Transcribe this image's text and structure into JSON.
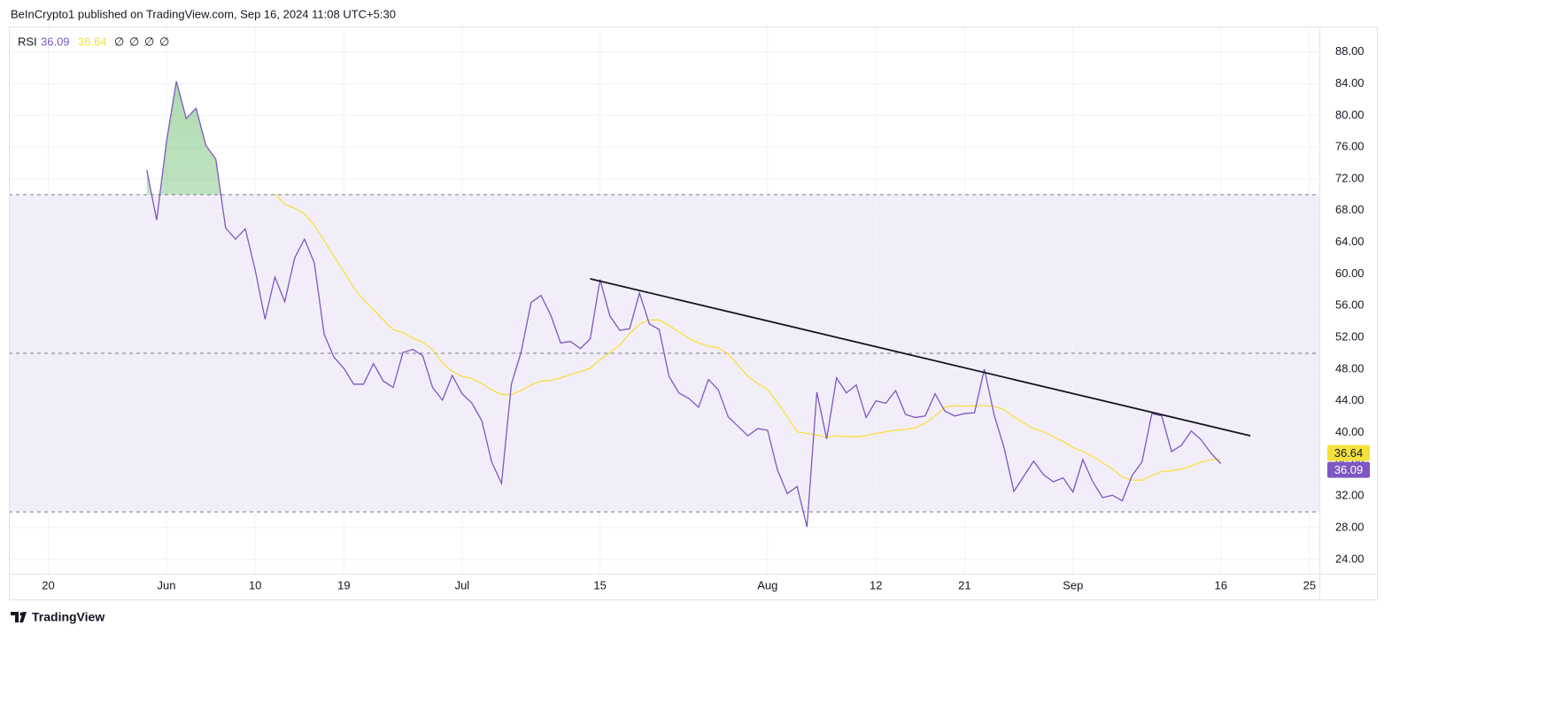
{
  "header": "BeInCrypto1 published on TradingView.com, Sep 16, 2024 11:08 UTC+5:30",
  "footer": "TradingView",
  "chart_data": {
    "type": "line",
    "legend_extras": [
      "∅",
      "∅",
      "∅",
      "∅"
    ],
    "x": [
      "May 30",
      "May 31",
      "Jun 1",
      "Jun 2",
      "Jun 3",
      "Jun 4",
      "Jun 5",
      "Jun 6",
      "Jun 7",
      "Jun 8",
      "Jun 9",
      "Jun 10",
      "Jun 11",
      "Jun 12",
      "Jun 13",
      "Jun 14",
      "Jun 15",
      "Jun 16",
      "Jun 17",
      "Jun 18",
      "Jun 19",
      "Jun 20",
      "Jun 21",
      "Jun 22",
      "Jun 23",
      "Jun 24",
      "Jun 25",
      "Jun 26",
      "Jun 27",
      "Jun 28",
      "Jun 29",
      "Jun 30",
      "Jul 1",
      "Jul 2",
      "Jul 3",
      "Jul 4",
      "Jul 5",
      "Jul 6",
      "Jul 7",
      "Jul 8",
      "Jul 9",
      "Jul 10",
      "Jul 11",
      "Jul 12",
      "Jul 13",
      "Jul 14",
      "Jul 15",
      "Jul 16",
      "Jul 17",
      "Jul 18",
      "Jul 19",
      "Jul 20",
      "Jul 21",
      "Jul 22",
      "Jul 23",
      "Jul 24",
      "Jul 25",
      "Jul 26",
      "Jul 27",
      "Jul 28",
      "Jul 29",
      "Jul 30",
      "Jul 31",
      "Aug 1",
      "Aug 2",
      "Aug 3",
      "Aug 4",
      "Aug 5",
      "Aug 6",
      "Aug 7",
      "Aug 8",
      "Aug 9",
      "Aug 10",
      "Aug 11",
      "Aug 12",
      "Aug 13",
      "Aug 14",
      "Aug 15",
      "Aug 16",
      "Aug 17",
      "Aug 18",
      "Aug 19",
      "Aug 20",
      "Aug 21",
      "Aug 22",
      "Aug 23",
      "Aug 24",
      "Aug 25",
      "Aug 26",
      "Aug 27",
      "Aug 28",
      "Aug 29",
      "Aug 30",
      "Aug 31",
      "Sep 1",
      "Sep 2",
      "Sep 3",
      "Sep 4",
      "Sep 5",
      "Sep 6",
      "Sep 7",
      "Sep 8",
      "Sep 9",
      "Sep 10",
      "Sep 11",
      "Sep 12",
      "Sep 13",
      "Sep 14",
      "Sep 15",
      "Sep 16"
    ],
    "series": [
      {
        "name": "RSI",
        "color": "#7e57c2",
        "values": [
          73.1,
          66.8,
          76.7,
          84.3,
          79.6,
          80.9,
          76.2,
          74.5,
          65.8,
          64.4,
          65.7,
          60.5,
          54.3,
          59.6,
          56.5,
          62.0,
          64.4,
          61.4,
          52.4,
          49.5,
          48.1,
          46.1,
          46.1,
          48.7,
          46.5,
          45.7,
          50.1,
          50.5,
          49.7,
          45.7,
          44.1,
          47.2,
          44.9,
          43.7,
          41.5,
          36.3,
          33.6,
          46.1,
          50.2,
          56.4,
          57.3,
          54.8,
          51.3,
          51.5,
          50.6,
          51.8,
          59.3,
          54.7,
          52.9,
          53.1,
          57.6,
          53.7,
          53.0,
          47.1,
          45.0,
          44.3,
          43.2,
          46.7,
          45.4,
          42.0,
          40.8,
          39.6,
          40.5,
          40.3,
          35.3,
          32.3,
          33.2,
          28.1,
          45.1,
          39.2,
          46.9,
          45.0,
          46.0,
          41.9,
          44.0,
          43.7,
          45.3,
          42.3,
          41.9,
          42.1,
          44.9,
          42.7,
          42.1,
          42.4,
          42.5,
          48.0,
          42.2,
          38.1,
          32.6,
          34.5,
          36.4,
          34.7,
          33.8,
          34.3,
          32.5,
          36.6,
          33.8,
          31.8,
          32.1,
          31.4,
          34.6,
          36.3,
          42.4,
          42.1,
          37.6,
          38.4,
          40.2,
          39.1,
          37.4,
          36.09
        ]
      },
      {
        "color": "#f5e13e",
        "values": [
          null,
          null,
          null,
          null,
          null,
          null,
          null,
          null,
          null,
          null,
          null,
          null,
          null,
          70.1,
          68.8,
          68.3,
          67.6,
          66.1,
          64.2,
          62.2,
          60.3,
          58.3,
          56.7,
          55.5,
          54.2,
          53.0,
          52.6,
          51.9,
          51.4,
          50.5,
          48.8,
          47.7,
          47.1,
          46.8,
          46.2,
          45.4,
          44.8,
          44.8,
          45.3,
          46.0,
          46.5,
          46.6,
          46.9,
          47.3,
          47.7,
          48.1,
          49.2,
          50.1,
          51.0,
          52.5,
          53.7,
          54.2,
          54.2,
          53.5,
          52.7,
          51.9,
          51.3,
          50.9,
          50.7,
          49.9,
          48.5,
          47.1,
          46.2,
          45.4,
          43.8,
          42.0,
          40.1,
          39.9,
          39.7,
          39.4,
          39.6,
          39.5,
          39.5,
          39.6,
          39.9,
          40.1,
          40.3,
          40.4,
          40.6,
          41.2,
          42.1,
          43.2,
          43.4,
          43.3,
          43.4,
          43.4,
          43.3,
          42.9,
          42.0,
          41.2,
          40.5,
          40.1,
          39.5,
          38.9,
          38.1,
          37.6,
          37.0,
          36.2,
          35.4,
          34.4,
          34.0,
          34.0,
          34.6,
          35.1,
          35.2,
          35.4,
          35.8,
          36.3,
          36.6,
          36.64
        ]
      }
    ],
    "trendline": {
      "color": "#131722",
      "x": [
        "Jul 14",
        "Sep 19"
      ],
      "values": [
        59.4,
        39.6
      ]
    },
    "levels": [
      70,
      50,
      30
    ],
    "band": [
      30,
      70
    ],
    "band_color": "#7e57c2",
    "overbought_color": "#4caf50",
    "xlim": [
      "May 16",
      "Sep 26"
    ],
    "xticks": [
      {
        "value": "May 20",
        "label": "20"
      },
      {
        "value": "Jun 1",
        "label": "Jun"
      },
      {
        "value": "Jun 10",
        "label": "10"
      },
      {
        "value": "Jun 19",
        "label": "19"
      },
      {
        "value": "Jul 1",
        "label": "Jul"
      },
      {
        "value": "Jul 15",
        "label": "15"
      },
      {
        "value": "Aug 1",
        "label": "Aug"
      },
      {
        "value": "Aug 12",
        "label": "12"
      },
      {
        "value": "Aug 21",
        "label": "21"
      },
      {
        "value": "Sep 1",
        "label": "Sep"
      },
      {
        "value": "Sep 16",
        "label": "16"
      },
      {
        "value": "Sep 25",
        "label": "25"
      }
    ],
    "ylim": [
      22.2,
      91.2
    ],
    "yticks": [
      {
        "value": 24,
        "label": "24.00"
      },
      {
        "value": 28,
        "label": "28.00"
      },
      {
        "value": 32,
        "label": "32.00"
      },
      {
        "value": 36,
        "label": "36.00"
      },
      {
        "value": 40,
        "label": "40.00"
      },
      {
        "value": 44,
        "label": "44.00"
      },
      {
        "value": 48,
        "label": "48.00"
      },
      {
        "value": 52,
        "label": "52.00"
      },
      {
        "value": 56,
        "label": "56.00"
      },
      {
        "value": 60,
        "label": "60.00"
      },
      {
        "value": 64,
        "label": "64.00"
      },
      {
        "value": 68,
        "label": "68.00"
      },
      {
        "value": 72,
        "label": "72.00"
      },
      {
        "value": 76,
        "label": "76.00"
      },
      {
        "value": 80,
        "label": "80.00"
      },
      {
        "value": 84,
        "label": "84.00"
      },
      {
        "value": 88,
        "label": "88.00"
      }
    ],
    "grid": true
  }
}
